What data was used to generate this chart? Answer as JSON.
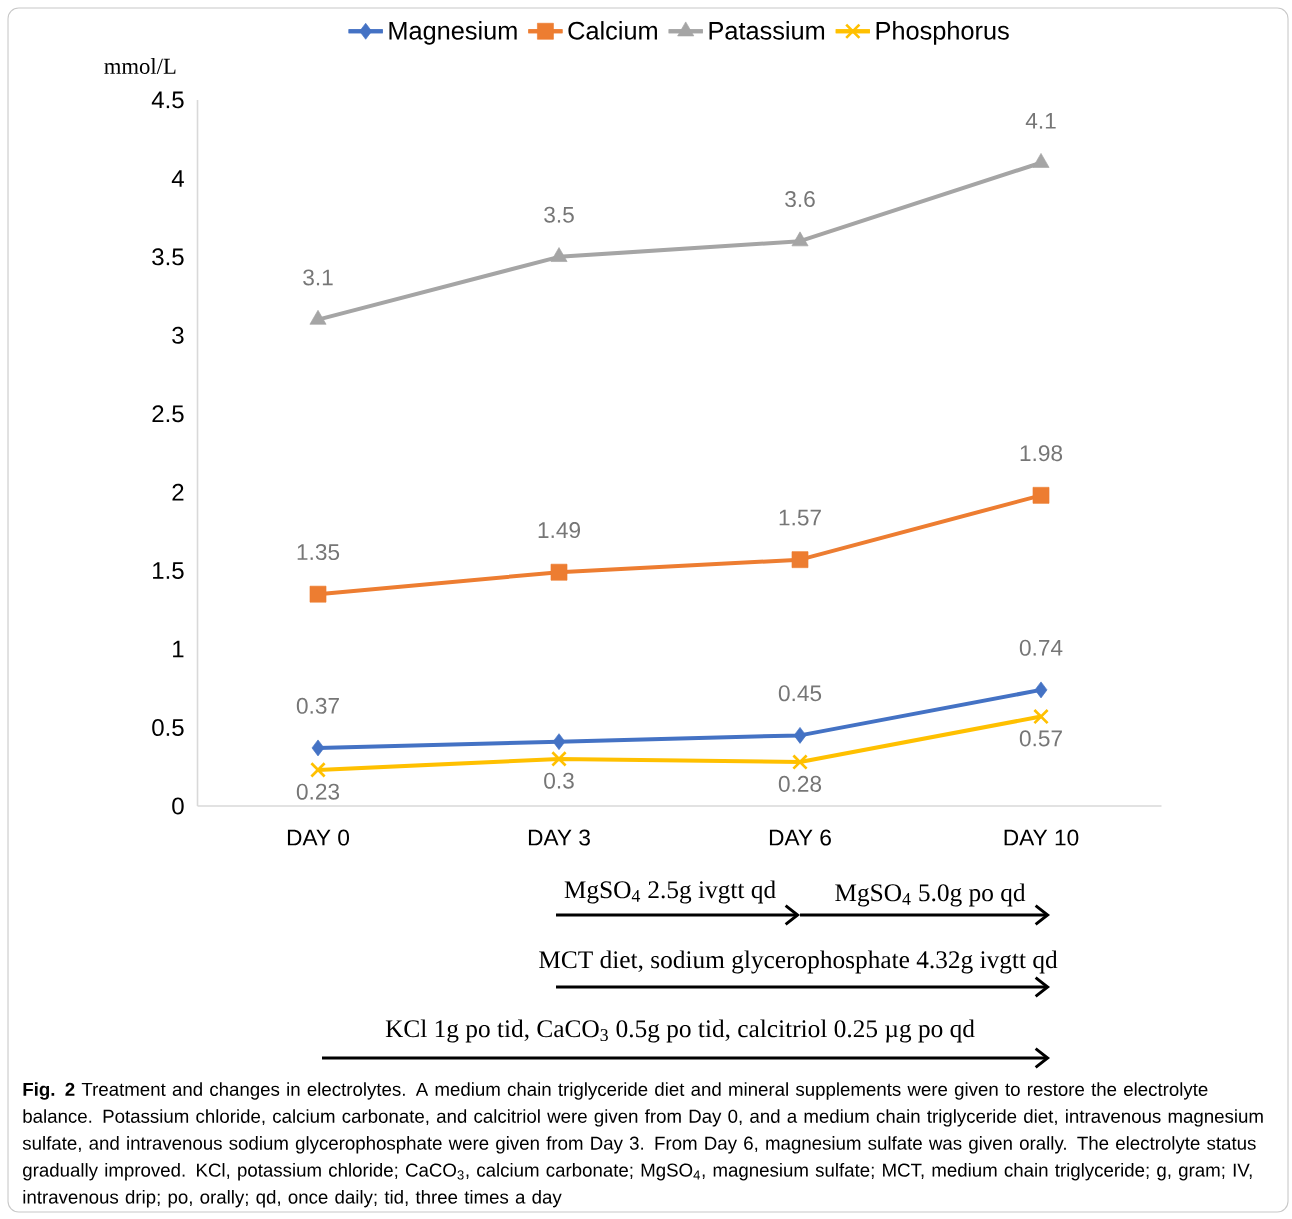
{
  "chart_data": {
    "type": "line",
    "ylabel": "mmol/L",
    "categories": [
      "DAY 0",
      "DAY 3",
      "DAY 6",
      "DAY 10"
    ],
    "ylim": [
      0,
      4.5
    ],
    "yticks": [
      0,
      0.5,
      1,
      1.5,
      2,
      2.5,
      3,
      3.5,
      4,
      4.5
    ],
    "legend": "top",
    "grid": false,
    "series": [
      {
        "name": "Magnesium",
        "color": "#4472c4",
        "marker": "diamond",
        "values": [
          0.37,
          0.41,
          0.45,
          0.74
        ],
        "value_labels": [
          "0.37",
          null,
          "0.45",
          "0.74"
        ]
      },
      {
        "name": "Calcium",
        "color": "#ed7d31",
        "marker": "square",
        "values": [
          1.35,
          1.49,
          1.57,
          1.98
        ],
        "value_labels": [
          "1.35",
          "1.49",
          "1.57",
          "1.98"
        ]
      },
      {
        "name": "Patassium",
        "color": "#a5a5a5",
        "marker": "triangle",
        "values": [
          3.1,
          3.5,
          3.6,
          4.1
        ],
        "value_labels": [
          "3.1",
          "3.5",
          "3.6",
          "4.1"
        ]
      },
      {
        "name": "Phosphorus",
        "color": "#ffc000",
        "marker": "cross",
        "values": [
          0.23,
          0.3,
          0.28,
          0.57
        ],
        "value_labels": [
          "0.23",
          "0.3",
          "0.28",
          "0.57"
        ]
      }
    ],
    "annotations": [
      "MgSO$_{4}$ 2.5g ivgtt qd",
      "MgSO$_{4}$ 5.0g po qd",
      "MCT diet, sodium glycerophosphate 4.32g ivgtt qd",
      "KCl 1g po tid, CaCO$_{3}$ 0.5g po tid, calcitriol 0.25  µg po qd",
      "**Fig. 2** Treatment and changes in electrolytes. A medium chain triglyceride diet and mineral supplements were given to restore the electrolyte balance. Potassium chloride, calcium carbonate, and calcitriol were given from Day 0, and a medium chain triglyceride diet, intravenous magnesium sulfate, and intravenous sodium glycerophosphate were given from Day 3. From Day 6, magnesium sulfate was given orally. The electrolyte status gradually improved. KCl, potassium chloride; CaCO$_{3}$, calcium carbonate; MgSO$_{4}$, magnesium sulfate; MCT, medium chain triglyceride; g, gram; IV, intravenous drip; po, orally; qd, once daily; tid, three times a day"
    ]
  }
}
